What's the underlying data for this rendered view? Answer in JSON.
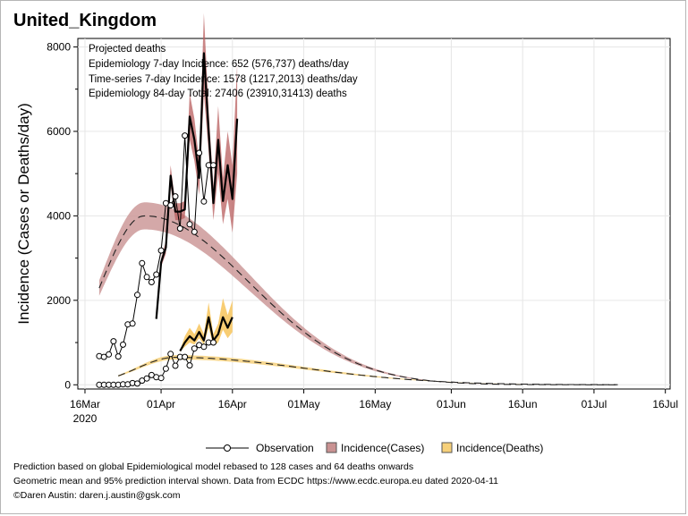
{
  "chart_data": {
    "type": "line",
    "title": "United_Kingdom",
    "xlabel": "",
    "ylabel": "Incidence (Cases or Deaths/day)",
    "x_ticks": [
      {
        "label": "16Mar",
        "sub": "2020",
        "day": 0
      },
      {
        "label": "01Apr",
        "sub": "",
        "day": 16
      },
      {
        "label": "16Apr",
        "sub": "",
        "day": 31
      },
      {
        "label": "01May",
        "sub": "",
        "day": 46
      },
      {
        "label": "16May",
        "sub": "",
        "day": 61
      },
      {
        "label": "01Jun",
        "sub": "",
        "day": 77
      },
      {
        "label": "16Jun",
        "sub": "",
        "day": 92
      },
      {
        "label": "01Jul",
        "sub": "",
        "day": 107
      },
      {
        "label": "16Jul",
        "sub": "",
        "day": 122
      }
    ],
    "y_ticks": [
      0,
      2000,
      4000,
      6000,
      8000
    ],
    "xlim": [
      -1.5,
      123
    ],
    "ylim": [
      -100,
      8200
    ],
    "grid": true,
    "annotations": [
      "Projected deaths",
      "Epidemiology 7-day Incidence:  652 (576,737) deaths/day",
      "Time-series 7-day Incidence:  1578 (1217,2013) deaths/day",
      "Epidemiology 84-day Total:  27406 (23910,31413) deaths"
    ],
    "legend": {
      "position": "bottom",
      "entries": [
        "Observation",
        "Incidence(Cases)",
        "Incidence(Deaths)"
      ]
    },
    "cases_model": {
      "peak_day": 12.5,
      "peak_value": 4000,
      "rise_scale": 9,
      "fall_scale": 22,
      "start_day": 3,
      "end_day": 112,
      "band_fraction": 0.08
    },
    "deaths_model": {
      "peak_day": 19,
      "peak_value": 650,
      "rise_scale": 8,
      "fall_scale": 27,
      "start_day": 7,
      "end_day": 112,
      "band_fraction": 0.08
    },
    "series": [
      {
        "name": "Observation (Cases)",
        "x": [
          3,
          4,
          5,
          6,
          7,
          8,
          9,
          10,
          11,
          12,
          13,
          14,
          15,
          16,
          17,
          18,
          19,
          20,
          21,
          22,
          23,
          24,
          25,
          26,
          27
        ],
        "values": [
          680,
          660,
          720,
          1030,
          670,
          950,
          1430,
          1450,
          2130,
          2880,
          2550,
          2430,
          2610,
          3180,
          4300,
          4250,
          4460,
          3700,
          5900,
          3800,
          3620,
          5490,
          4340,
          5200,
          5200
        ]
      },
      {
        "name": "Observation (Deaths)",
        "x": [
          3,
          4,
          5,
          6,
          7,
          8,
          9,
          10,
          11,
          12,
          13,
          14,
          15,
          16,
          17,
          18,
          19,
          20,
          21,
          22,
          23,
          24,
          25,
          26,
          27
        ],
        "values": [
          0,
          0,
          0,
          0,
          0,
          10,
          10,
          40,
          30,
          100,
          150,
          230,
          180,
          160,
          380,
          730,
          450,
          660,
          660,
          460,
          860,
          940,
          900,
          1000,
          1000
        ]
      },
      {
        "name": "Time-series (Cases)",
        "x": [
          15,
          16,
          17,
          18,
          19,
          20,
          21,
          22,
          23,
          24,
          25,
          26,
          27,
          28,
          29,
          30,
          31,
          32
        ],
        "values": [
          1560,
          2900,
          3250,
          4950,
          4100,
          4100,
          4150,
          6350,
          5800,
          4900,
          7850,
          6000,
          4300,
          5800,
          4350,
          5200,
          4400,
          6300
        ]
      },
      {
        "name": "Time-series (Deaths)",
        "x": [
          20,
          21,
          22,
          23,
          24,
          25,
          26,
          27,
          28,
          29,
          30,
          31
        ],
        "values": [
          800,
          1000,
          1150,
          1050,
          1250,
          1050,
          1600,
          1050,
          1200,
          1600,
          1350,
          1600
        ]
      }
    ],
    "ts_cases_band": {
      "x": [
        15,
        16,
        17,
        18,
        19,
        20,
        21,
        22,
        23,
        24,
        25,
        26,
        27,
        28,
        29,
        30,
        31,
        32
      ],
      "lower": [
        1560,
        2800,
        3100,
        4700,
        3900,
        3900,
        3950,
        5800,
        5300,
        4500,
        6900,
        5500,
        3900,
        5000,
        3800,
        4400,
        3600,
        5000
      ],
      "upper": [
        1560,
        3000,
        3400,
        5200,
        4300,
        4300,
        4350,
        6900,
        6300,
        5300,
        8800,
        6500,
        4700,
        6600,
        4900,
        6000,
        5200,
        7600
      ]
    },
    "ts_deaths_band": {
      "x": [
        20,
        21,
        22,
        23,
        24,
        25,
        26,
        27,
        28,
        29,
        30,
        31
      ],
      "lower": [
        780,
        900,
        1000,
        950,
        1100,
        950,
        1350,
        920,
        1000,
        1300,
        1100,
        1250
      ],
      "upper": [
        820,
        1150,
        1350,
        1200,
        1450,
        1200,
        1950,
        1200,
        1450,
        2050,
        1650,
        2000
      ]
    },
    "colors": {
      "cases_fill": "#c99292",
      "cases_line": "#7a1c1c",
      "cases_ts_fill": "#b85d5d",
      "deaths_fill": "#f6d07a",
      "deaths_line": "#c68a00",
      "deaths_ts_fill": "#f7c45a",
      "grid": "#e6e6e6",
      "axis": "#000000"
    }
  },
  "footer": {
    "line1": "Prediction based on global Epidemiological model rebased to 128 cases and 64 deaths onwards",
    "line2": "Geometric mean and 95% prediction interval shown. Data from ECDC https://www.ecdc.europa.eu dated 2020-04-11",
    "line3": "©Daren Austin: daren.j.austin@gsk.com"
  }
}
